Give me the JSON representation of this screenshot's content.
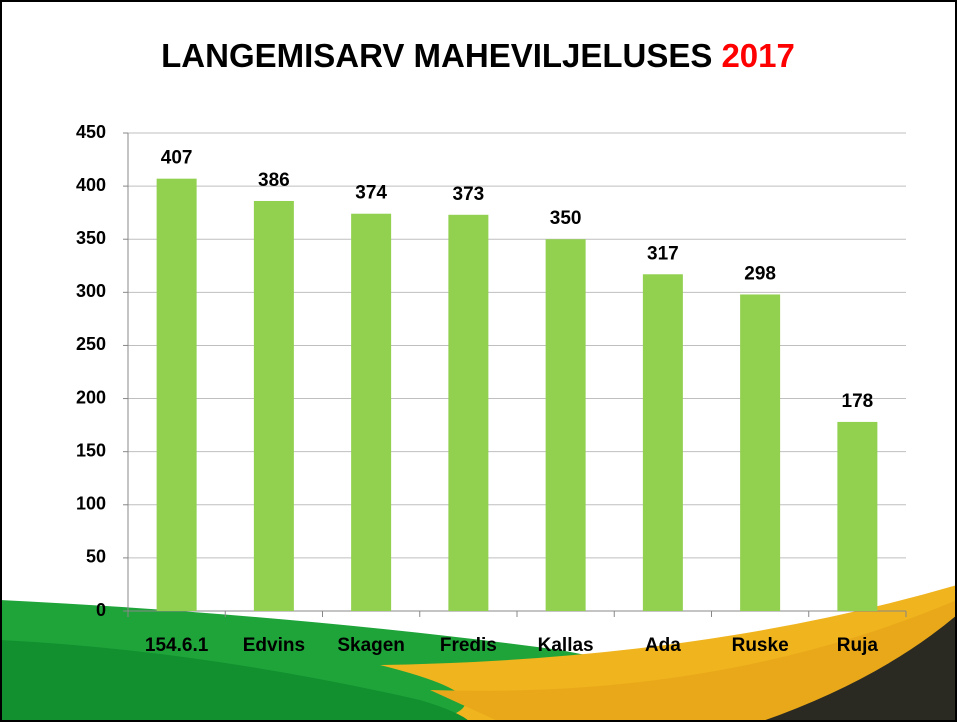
{
  "chart_data": {
    "type": "bar",
    "title": "LANGEMISARV MAHEVILJELUSES",
    "title_suffix": "2017",
    "title_suffix_color": "#ff0000",
    "categories": [
      "154.6.1",
      "Edvins",
      "Skagen",
      "Fredis",
      "Kallas",
      "Ada",
      "Ruske",
      "Ruja"
    ],
    "values": [
      407,
      386,
      374,
      373,
      350,
      317,
      298,
      178
    ],
    "color": "#92d050",
    "ylim": [
      0,
      450
    ],
    "yticks": [
      0,
      50,
      100,
      150,
      200,
      250,
      300,
      350,
      400,
      450
    ],
    "grid": true
  }
}
